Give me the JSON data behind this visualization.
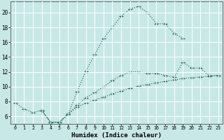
{
  "xlabel": "Humidex (Indice chaleur)",
  "bg_color": "#c8e8e8",
  "line_color": "#2a6e62",
  "grid_color": "#ffffff",
  "xlim": [
    -0.5,
    23.5
  ],
  "ylim": [
    5.0,
    21.5
  ],
  "xticks": [
    0,
    1,
    2,
    3,
    4,
    5,
    6,
    7,
    8,
    9,
    10,
    11,
    12,
    13,
    14,
    15,
    16,
    17,
    18,
    19,
    20,
    21,
    22,
    23
  ],
  "yticks": [
    6,
    8,
    10,
    12,
    14,
    16,
    18,
    20
  ],
  "series": [
    {
      "x": [
        0,
        1,
        2,
        3,
        4,
        5,
        6,
        7,
        8,
        9,
        10,
        11,
        12,
        13,
        14,
        15,
        16,
        17,
        18,
        19
      ],
      "y": [
        7.8,
        7.0,
        6.5,
        6.8,
        5.2,
        5.2,
        6.3,
        9.3,
        12.1,
        14.3,
        16.5,
        18.0,
        19.5,
        20.5,
        20.8,
        20.0,
        18.5,
        18.5,
        17.2,
        16.5
      ]
    },
    {
      "x": [
        3,
        4,
        5,
        6,
        7,
        8,
        9,
        10,
        11,
        12,
        13,
        14,
        15,
        16,
        17,
        18,
        19,
        20,
        21,
        22,
        23
      ],
      "y": [
        6.8,
        5.2,
        5.2,
        6.3,
        7.5,
        8.5,
        9.2,
        10.0,
        10.8,
        11.5,
        12.0,
        12.0,
        11.8,
        11.8,
        11.5,
        11.3,
        13.3,
        12.5,
        12.5,
        11.5,
        11.5
      ]
    },
    {
      "x": [
        3,
        4,
        5,
        6,
        7,
        8,
        9,
        10,
        11,
        12,
        13,
        14,
        15,
        16,
        17,
        18,
        19,
        20,
        21,
        22,
        23
      ],
      "y": [
        6.8,
        5.2,
        5.2,
        6.3,
        7.2,
        7.8,
        8.2,
        8.6,
        9.0,
        9.4,
        9.8,
        10.1,
        10.3,
        10.5,
        10.7,
        10.9,
        11.1,
        11.2,
        11.3,
        11.4,
        11.5
      ]
    }
  ]
}
